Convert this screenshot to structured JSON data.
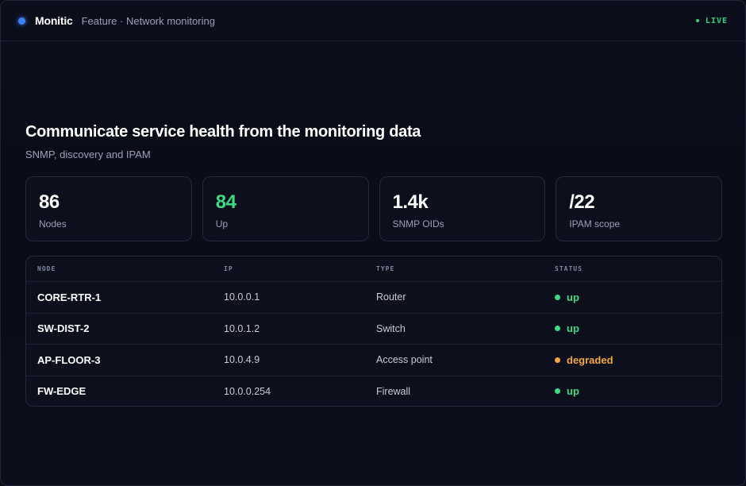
{
  "header": {
    "brand": "Monitic",
    "crumb": "Feature · Network monitoring",
    "live_label": "LIVE",
    "brand_color": "#3b82f6",
    "live_color": "#34d27a"
  },
  "hero": {
    "title": "Communicate service health from the monitoring data",
    "subtitle": "SNMP, discovery and IPAM"
  },
  "stats": [
    {
      "value": "86",
      "label": "Nodes"
    },
    {
      "value": "84",
      "label": "Up"
    },
    {
      "value": "1.4k",
      "label": "SNMP OIDs"
    },
    {
      "value": "/22",
      "label": "IPAM scope"
    }
  ],
  "table": {
    "columns": [
      "NODE",
      "IP",
      "TYPE",
      "STATUS"
    ],
    "rows": [
      {
        "node": "CORE-RTR-1",
        "ip": "10.0.0.1",
        "type": "Router",
        "status": "up"
      },
      {
        "node": "SW-DIST-2",
        "ip": "10.0.1.2",
        "type": "Switch",
        "status": "up"
      },
      {
        "node": "AP-FLOOR-3",
        "ip": "10.0.4.9",
        "type": "Access point",
        "status": "degraded"
      },
      {
        "node": "FW-EDGE",
        "ip": "10.0.0.254",
        "type": "Firewall",
        "status": "up"
      }
    ],
    "status_colors": {
      "up": "#3ddc84",
      "degraded": "#f5a742"
    }
  }
}
